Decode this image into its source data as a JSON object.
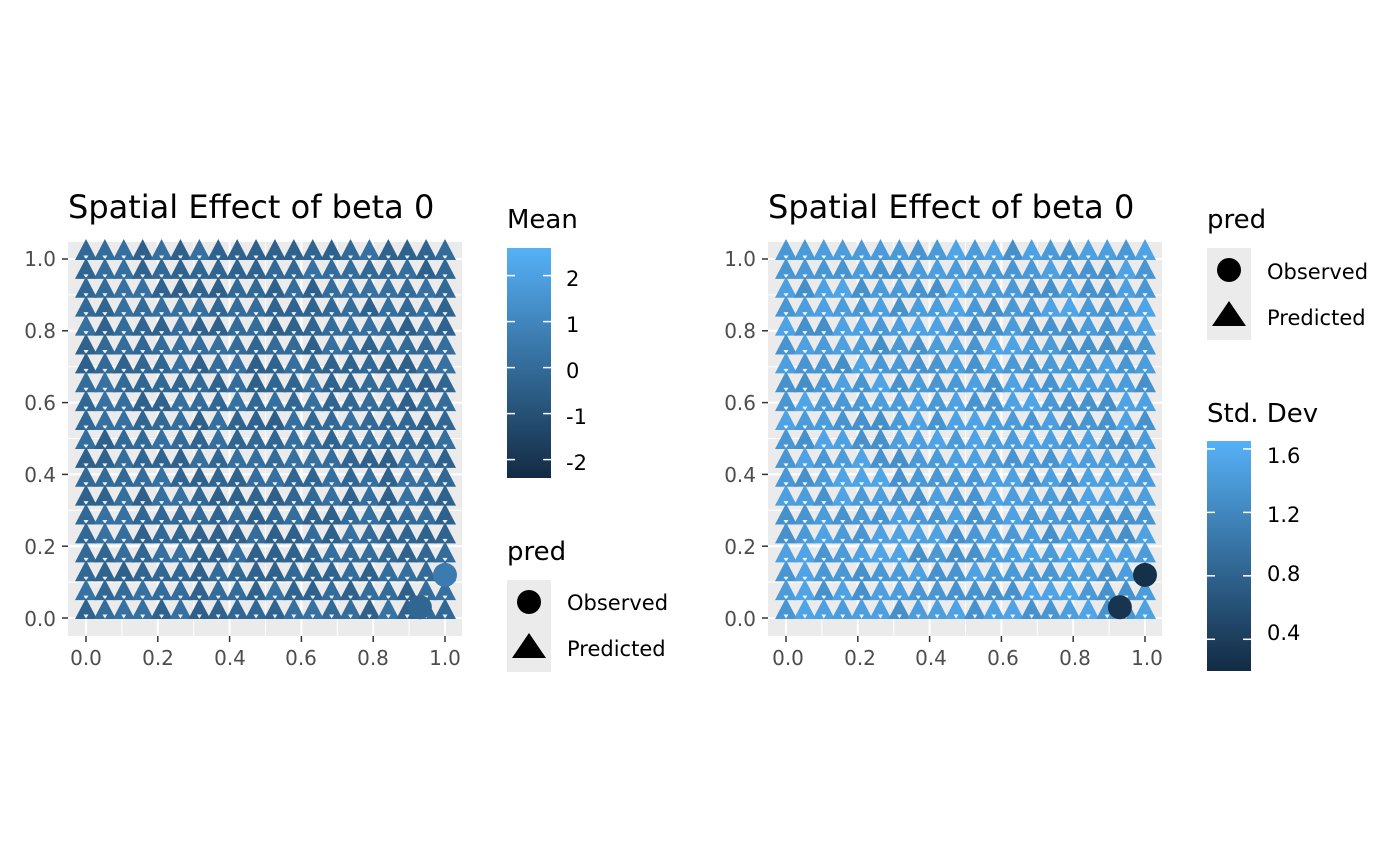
{
  "chart_data": [
    {
      "type": "scatter",
      "title": "Spatial Effect of beta 0",
      "xlabel": "",
      "ylabel": "",
      "xlim": [
        0,
        1
      ],
      "ylim": [
        0,
        1
      ],
      "x_ticks": [
        "0.0",
        "0.2",
        "0.4",
        "0.6",
        "0.8",
        "1.0"
      ],
      "y_ticks": [
        "0.0",
        "0.2",
        "0.4",
        "0.6",
        "0.8",
        "1.0"
      ],
      "grid": true,
      "color_legend": {
        "title": "Mean",
        "ticks": [
          "2",
          "1",
          "0",
          "-1",
          "-2"
        ],
        "tick_values": [
          2,
          1,
          0,
          -1,
          -2
        ],
        "range": [
          -2.4,
          2.6
        ],
        "low_color": "#132b43",
        "high_color": "#56b1f7"
      },
      "shape_legend": {
        "title": "pred",
        "items": [
          {
            "label": "Observed",
            "shape": "circle"
          },
          {
            "label": "Predicted",
            "shape": "triangle"
          }
        ]
      },
      "predicted_grid": {
        "n": 20,
        "from": 0,
        "to": 1,
        "typical_value": -0.1,
        "value_spread": 0.35
      },
      "observed_points": [
        {
          "x": 1.0,
          "y": 0.12,
          "value": 0.6
        },
        {
          "x": 0.93,
          "y": 0.03,
          "value": -0.2
        }
      ]
    },
    {
      "type": "scatter",
      "title": "Spatial Effect of beta 0",
      "xlabel": "",
      "ylabel": "",
      "xlim": [
        0,
        1
      ],
      "ylim": [
        0,
        1
      ],
      "x_ticks": [
        "0.0",
        "0.2",
        "0.4",
        "0.6",
        "0.8",
        "1.0"
      ],
      "y_ticks": [
        "0.0",
        "0.2",
        "0.4",
        "0.6",
        "0.8",
        "1.0"
      ],
      "grid": true,
      "shape_legend": {
        "title": "pred",
        "items": [
          {
            "label": "Observed",
            "shape": "circle"
          },
          {
            "label": "Predicted",
            "shape": "triangle"
          }
        ]
      },
      "color_legend": {
        "title": "Std. Dev",
        "ticks": [
          "1.6",
          "1.2",
          "0.8",
          "0.4"
        ],
        "tick_values": [
          1.6,
          1.2,
          0.8,
          0.4
        ],
        "range": [
          0.2,
          1.65
        ],
        "low_color": "#132b43",
        "high_color": "#56b1f7"
      },
      "predicted_grid": {
        "n": 20,
        "from": 0,
        "to": 1,
        "typical_value": 1.4,
        "value_spread": 0.12
      },
      "observed_points": [
        {
          "x": 1.0,
          "y": 0.12,
          "value": 0.25
        },
        {
          "x": 0.93,
          "y": 0.03,
          "value": 0.3
        }
      ]
    }
  ]
}
